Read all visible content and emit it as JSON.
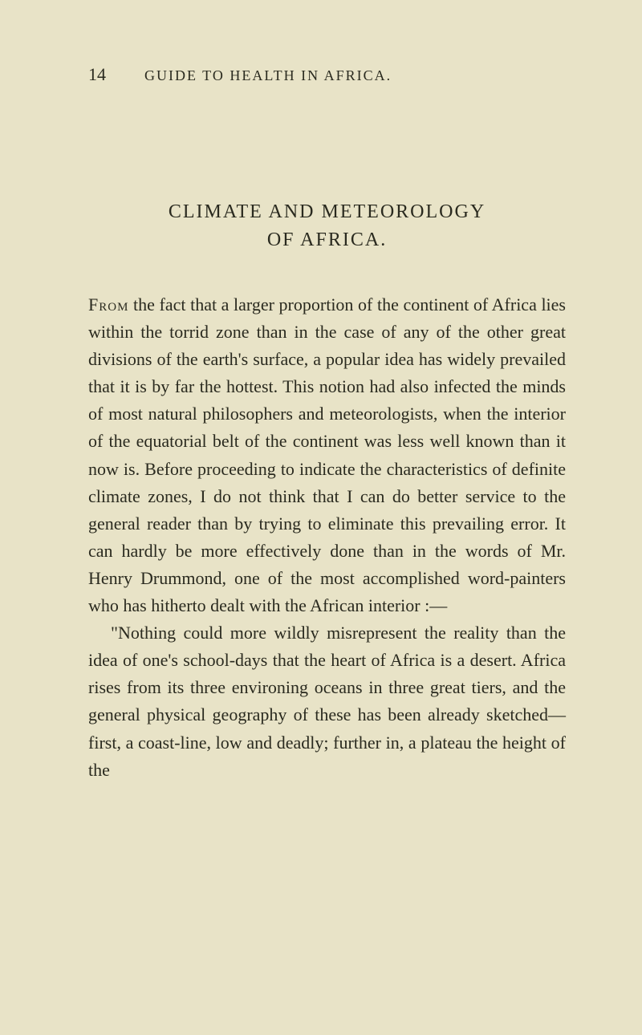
{
  "page_number": "14",
  "running_head": "GUIDE TO HEALTH IN AFRICA.",
  "chapter_title": {
    "line1": "CLIMATE AND METEOROLOGY",
    "line2": "OF AFRICA."
  },
  "paragraphs": {
    "p1_lead": "From",
    "p1_rest": " the fact that a larger proportion of the con­tinent of Africa lies within the torrid zone than in the case of any of the other great divisions of the earth's surface, a popular idea has widely prevailed that it is by far the hottest. This notion had also infected the minds of most natural philosophers and meteorologists, when the interior of the equa­torial belt of the continent was less well known than it now is. Before proceeding to indicate the characteristics of definite climate zones, I do not think that I can do better service to the general reader than by trying to eliminate this prevailing error. It can hardly be more effectively done than in the words of Mr. Henry Drummond, one of the most accomplished word-painters who has hitherto dealt with the African interior :—",
    "p2": "\"Nothing could more wildly misrepresent the reality than the idea of one's school-days that the heart of Africa is a desert. Africa rises from its three environing oceans in three great tiers, and the general physical geography of these has been already sketched—first, a coast-line, low and deadly; further in, a plateau the height of the"
  },
  "styling": {
    "background_color": "#e8e3c7",
    "text_color": "#2a2a1f",
    "body_fontsize": 22,
    "title_fontsize": 24,
    "header_fontsize": 18,
    "pagenum_fontsize": 22,
    "line_height": 1.55,
    "font_family": "Georgia, Times New Roman, serif"
  }
}
